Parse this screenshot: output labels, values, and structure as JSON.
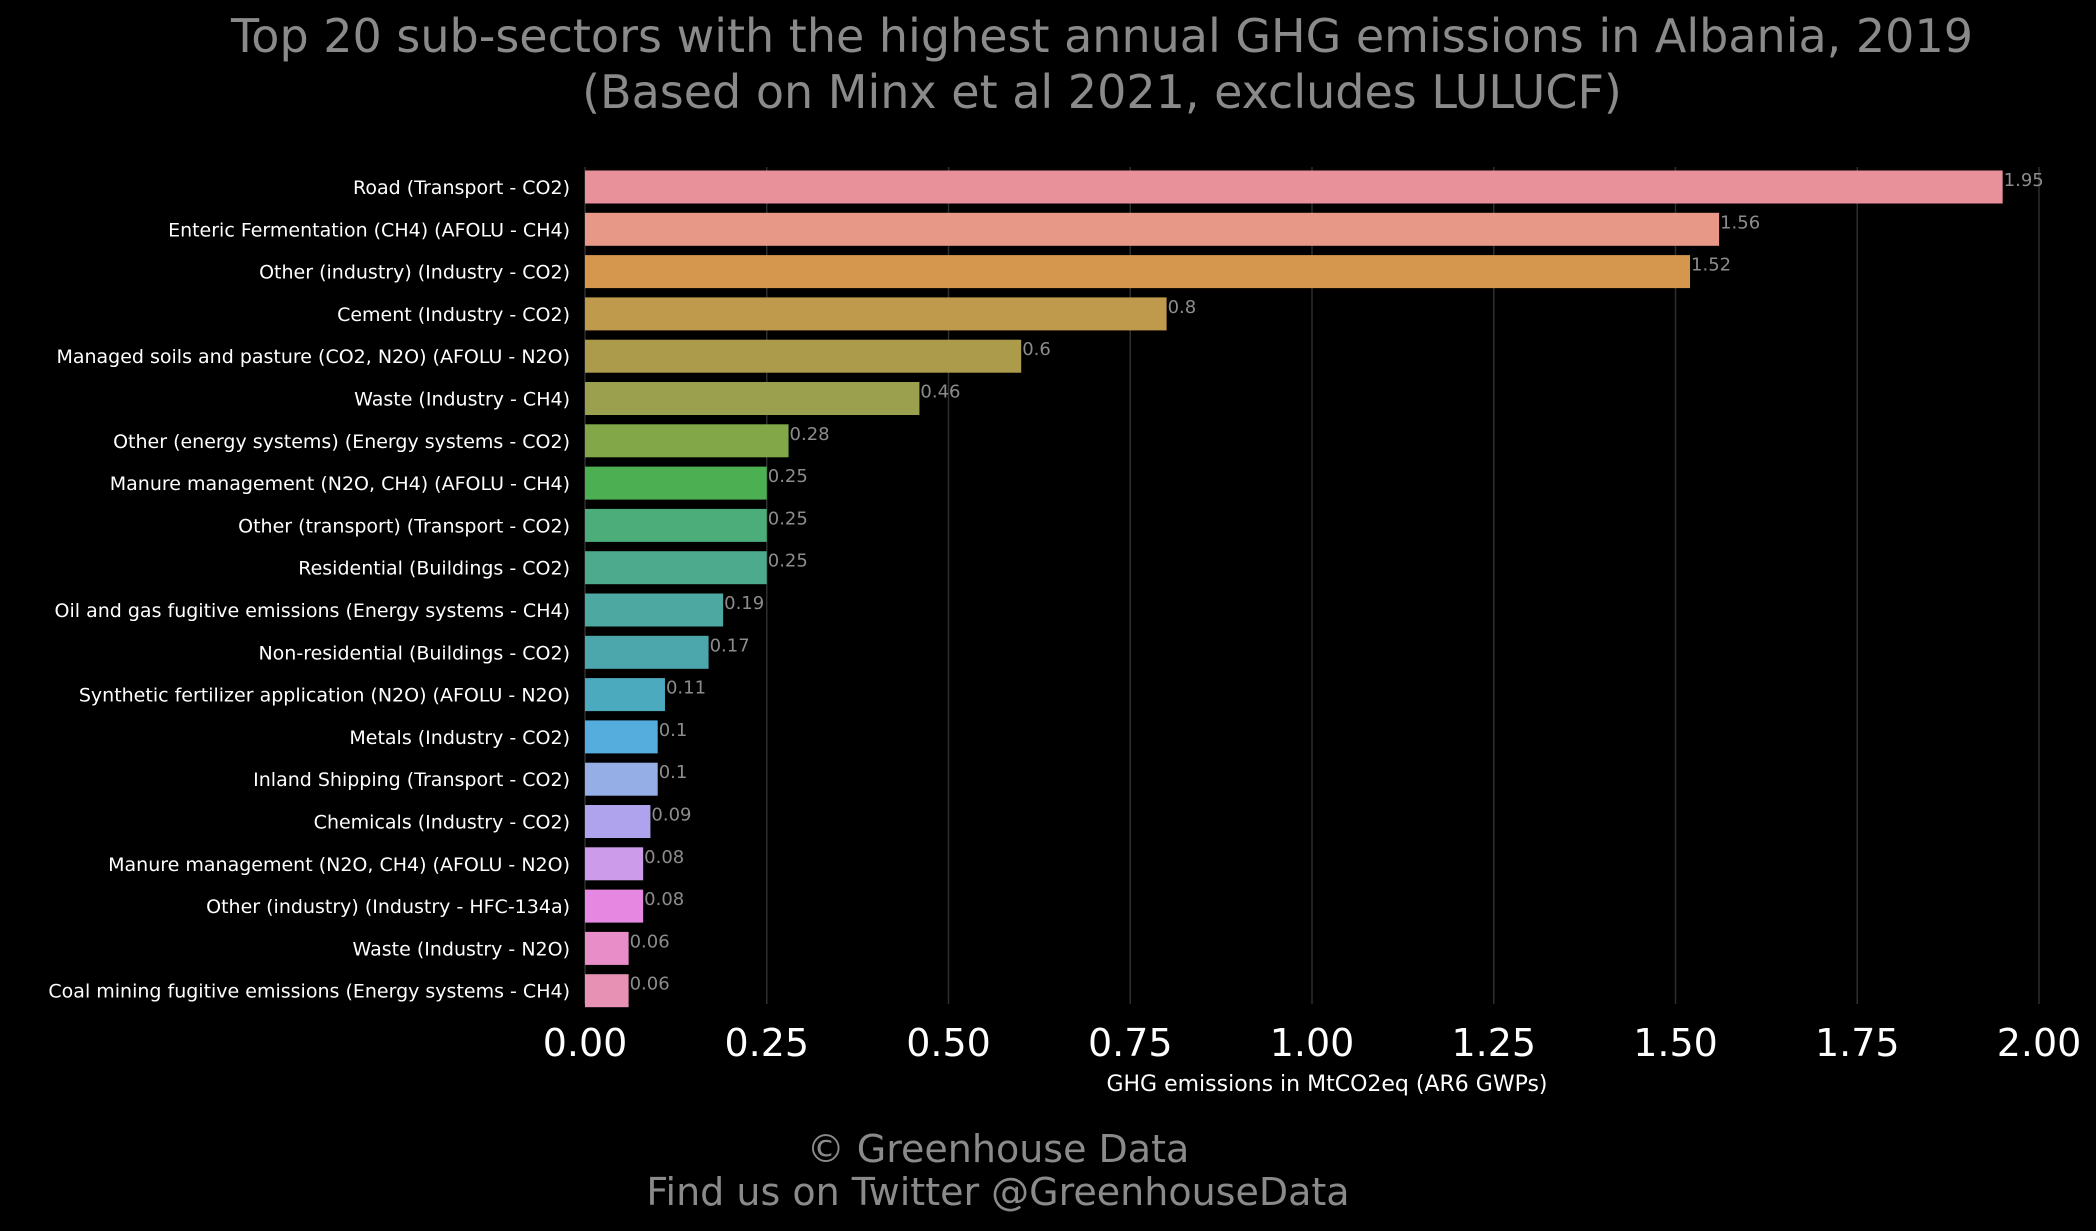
{
  "chart_data": {
    "type": "bar",
    "orientation": "horizontal",
    "title_lines": [
      "Top 20 sub-sectors with the highest annual GHG emissions in Albania, 2019",
      "(Based on Minx et al 2021, excludes LULUCF)"
    ],
    "xlabel": "GHG emissions in MtCO2eq (AR6 GWPs)",
    "ylabel": "",
    "xlim": [
      0,
      2.0
    ],
    "xticks": [
      0.0,
      0.25,
      0.5,
      0.75,
      1.0,
      1.25,
      1.5,
      1.75,
      2.0
    ],
    "xtick_labels": [
      "0.00",
      "0.25",
      "0.50",
      "0.75",
      "1.00",
      "1.25",
      "1.50",
      "1.75",
      "2.00"
    ],
    "grid": "vertical",
    "categories": [
      "Road (Transport - CO2)",
      "Enteric Fermentation (CH4) (AFOLU - CH4)",
      "Other (industry) (Industry - CO2)",
      "Cement (Industry - CO2)",
      "Managed soils and pasture (CO2, N2O) (AFOLU - N2O)",
      "Waste (Industry - CH4)",
      "Other (energy systems) (Energy systems - CO2)",
      "Manure management (N2O, CH4) (AFOLU - CH4)",
      "Other (transport) (Transport - CO2)",
      "Residential (Buildings - CO2)",
      "Oil and gas fugitive emissions (Energy systems - CH4)",
      "Non-residential (Buildings - CO2)",
      "Synthetic fertilizer application (N2O) (AFOLU - N2O)",
      "Metals (Industry - CO2)",
      "Inland Shipping (Transport - CO2)",
      "Chemicals (Industry - CO2)",
      "Manure management (N2O, CH4) (AFOLU - N2O)",
      "Other (industry) (Industry - HFC-134a)",
      "Waste (Industry - N2O)",
      "Coal mining fugitive emissions (Energy systems - CH4)"
    ],
    "values": [
      1.95,
      1.56,
      1.52,
      0.8,
      0.6,
      0.46,
      0.28,
      0.25,
      0.25,
      0.25,
      0.19,
      0.17,
      0.11,
      0.1,
      0.1,
      0.09,
      0.08,
      0.08,
      0.06,
      0.06
    ],
    "value_labels": [
      "1.95",
      "1.56",
      "1.52",
      "0.8",
      "0.6",
      "0.46",
      "0.28",
      "0.25",
      "0.25",
      "0.25",
      "0.19",
      "0.17",
      "0.11",
      "0.1",
      "0.1",
      "0.09",
      "0.08",
      "0.08",
      "0.06",
      "0.06"
    ],
    "colors": [
      "#e8919b",
      "#e89886",
      "#d5974e",
      "#c09a4c",
      "#ab9b4b",
      "#9aa04d",
      "#82a748",
      "#4caf52",
      "#4cad7a",
      "#4daa8c",
      "#4ca8a0",
      "#4ca7ad",
      "#4caabf",
      "#55addd",
      "#95aee6",
      "#b0a3ee",
      "#cc9bea",
      "#e688e1",
      "#e98dc9",
      "#e791b5"
    ]
  },
  "footer": {
    "line1": "© Greenhouse Data",
    "line2": "Find us on Twitter @GreenhouseData"
  }
}
